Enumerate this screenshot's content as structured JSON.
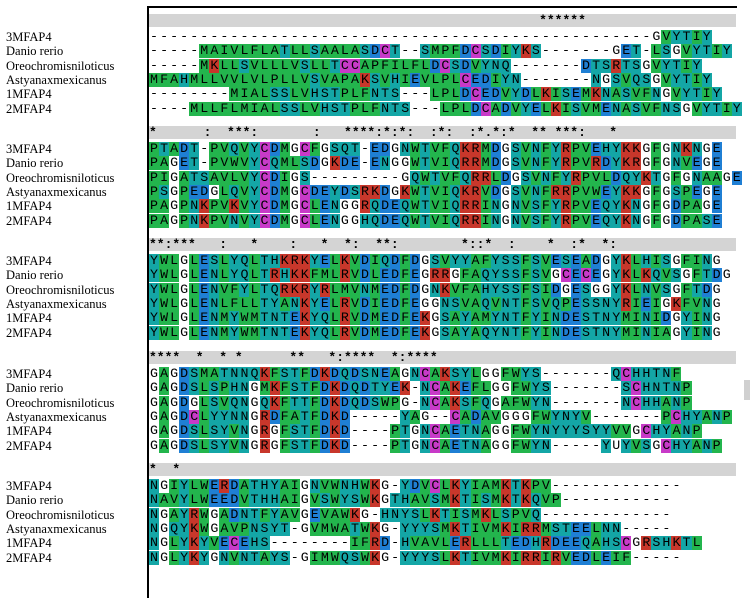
{
  "species": [
    "3MFAP4",
    "Danio rerio",
    "Oreochromisniloticus",
    "Astyanaxmexicanus",
    "1MFAP4",
    "2MFAP4"
  ],
  "blocks": [
    {
      "consensus": "                                                  ******",
      "rows": [
        "--------------------------------------------------GVYTIY",
        "-----MAIVLFLATLLSAALASDCT--SMPFDCSDIYKS-------GET-LSGVYTIY",
        "-----MKLLSVLLLVSLLTCCAPFILFLDCSDVYNQ-------DTSRTSGVYTIY",
        "MFAHMLLVVLVLPLLVSVAPAKSVHIEVLPLCEDIYN-------NGSVQSGVYTIY",
        "--------MIALSSLVHSTPLFNTS---LPLDCEDVYDLKISEMKNASVFNGVYTIY",
        "----MLLFLMIALSSLVHSTPLFNTS---LPLDCADVYELKISVMENASVFNSGVYTIY"
      ]
    },
    {
      "consensus": "*      :  ***:       :   ****:*:*:  :*:  :*.*:*  ** ***:   *",
      "rows": [
        "PTADT-PVQVYCDMGCFGSQT-EDGNWTVFQKRMDGSVNFYRPVEHYKKGFGNKNGE",
        "PAGET-PVWVYCQMLSDGKDE-ENGGWTVIQRRMDGSVNFYRPVRDYKRGFGNVEGE",
        "PIGATSAVLVYCDIGS---------GQWTVFQRRLDGSVNFYRPVLDQYKTGFGNAAGE",
        "PSGPEDGLQVYCDMGCDEYDSRKDGKWTVIQKRVDGSVNFRRPVWEYKKGFGSPEGE",
        "PAGPNKPVKVYCDMGCLENGGRQDEQWTVIQRRINGNVSFYRPVEQYKNGFGDPAGE",
        "PAGPNKPVNVYCDMGCLENGGHQDEQWTVIQRRINGNVSFYRPVEQYKNGFGDPASE"
      ]
    },
    {
      "consensus": "**:***   :   *    :   *  *:  **:        *::*  :    *  :*  *:",
      "rows": [
        "YWLGLESLYQLTHKRKYELKVDIQDFDGSVYYAFYSSFSVESEADGYKLHISGFING",
        "YWLGLENLYQLTRHKKFMLRVDLEDFEGRRGFAQYSSFSVGCECEGYKLKQVSGFTDG",
        "YWLGLENVFYLTQRKRYRLMVNMEDFDGNKVFAHYSSFSIDGESGGYKLNVSGFTDG",
        "YWLGLENLFLLTYANKYELRVDIEDFEGGNSVAQVNTFSVQPESSNYRIEIGKFVNG",
        "YWLGLENMYWMTNTEKYQLRVDMEDFEKGSAYAMYNTFYINDESTNYMINIDGYING",
        "YWLGLENMYWMTNTEKYQLRVDMEDFEKGSAYAQYNTFYINDESTNYMINIAGYING"
      ]
    },
    {
      "consensus": "****  *  * *      **   *:****  *:****     ",
      "rows": [
        "GAGDSMATNNQKFSTFDKDQDSNEAGNCAKSYLGGFWYS-------QCHHTNF",
        "GAGDSLSPHNGMKFSTFDKDQDTYEK-NCAKEFLGGFWYS-------SCHNTNP",
        "GAGDGLSVQNGQKFTTFDKDQDSWPG-NCAKSFQGAFWYN-------NCHHANP",
        "GAGDCLYYNNGRDFATFDKD-----YAG--CADAVGGGFWYNYV-------PCHYANP",
        "GAGDSLSYVNGRGFSTFDKD----PTGNCAETNAGGFWYNYYYSYYVVGCHYANP",
        "GAGDSLSYVNGRGFSTFDKD----PTGNCAETNAGGFWYN-----YUYVSGCHYANP"
      ]
    },
    {
      "consensus": "*  *   ",
      "rows": [
        "NGIYLWERDATHYAIGNVWNHWKG-YDVCLKYIAMKTKPV-------------",
        "NAVYLWEEDVTHHAIGVSWYSWKGTHAVSMKTISMKTKQVP-----------",
        "NGAYRWGADNTFYAVGEVAWKG-HNYSLKTISMKLSPVQ-------------",
        "NGQYKWGAVPNSYT-GVMWATWKG-YYYSMKTIVMKIRRMSTEELNN-----",
        "NGLYKYVECEHS--------IFRD-HVAVLERLLLTEDHRDEEQAHSCGRSHKTL",
        "NGLYKYGNVNTAYS-GIMWQSWKG-YYYSLKTIVMKIRRIRVEDLEIF-----"
      ]
    }
  ]
}
